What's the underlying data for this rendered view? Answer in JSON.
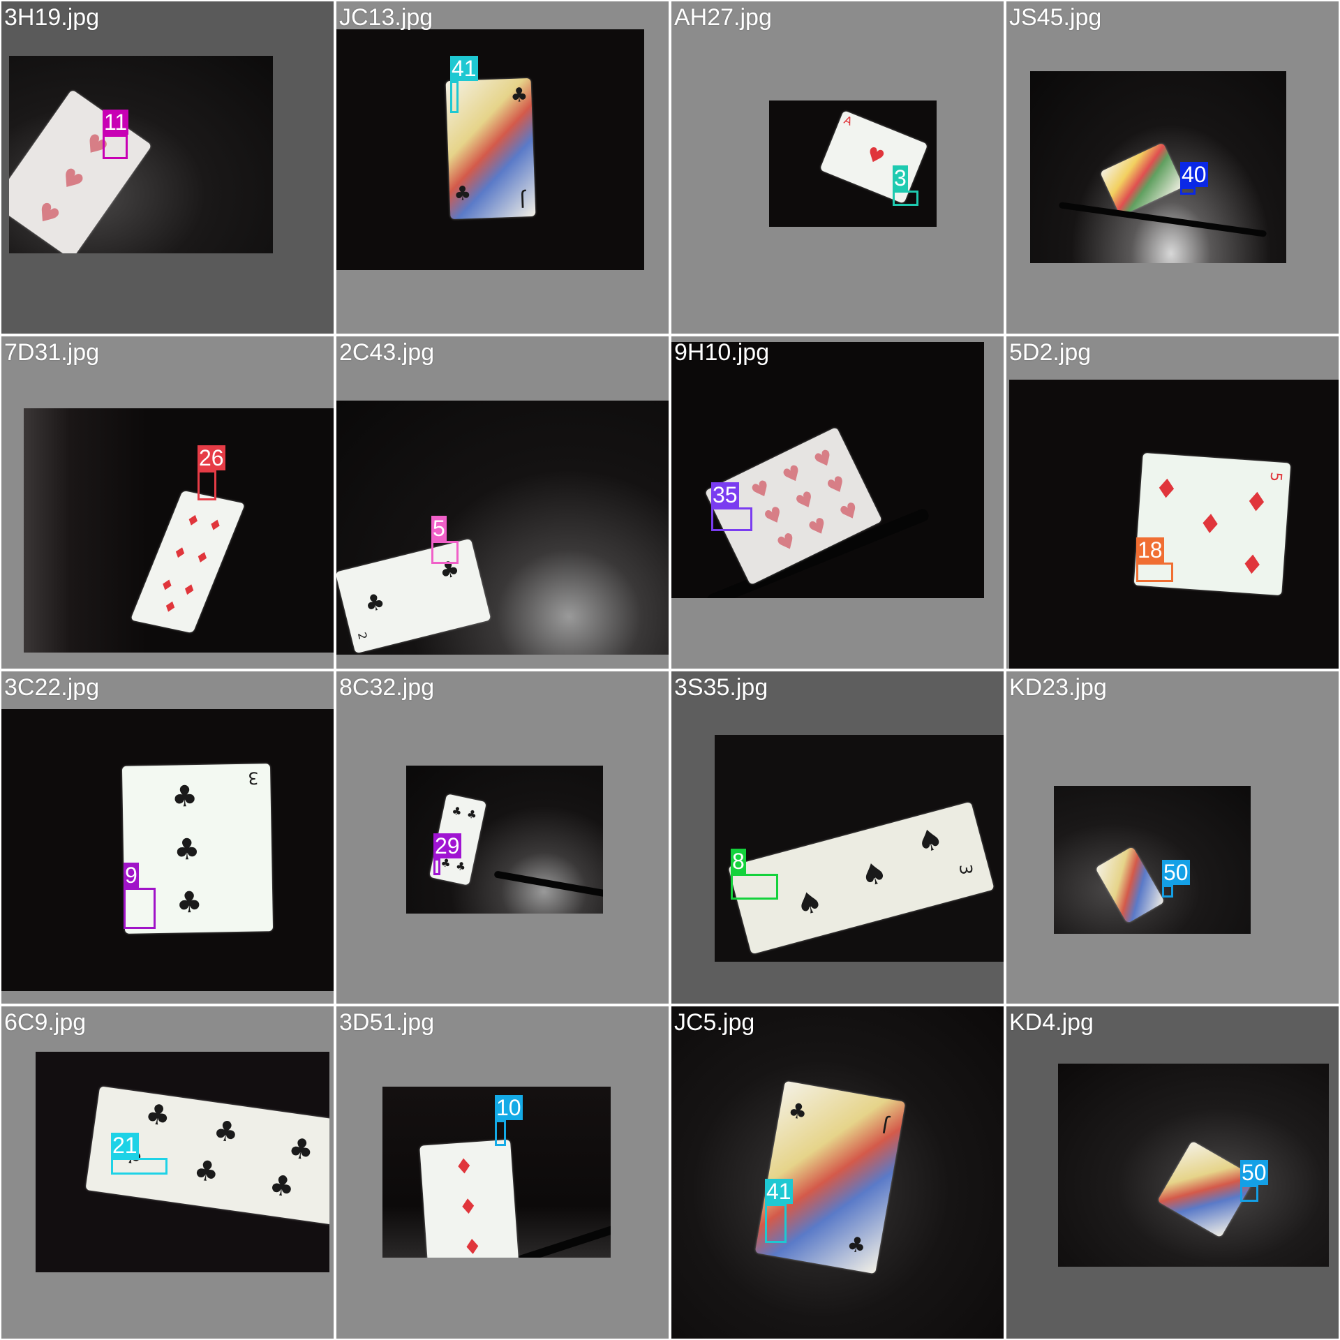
{
  "tiles": [
    {
      "filename": "3H19.jpg",
      "class_id": "11",
      "color": "#c800b4"
    },
    {
      "filename": "JC13.jpg",
      "class_id": "41",
      "color": "#1ec8d2"
    },
    {
      "filename": "AH27.jpg",
      "class_id": "3",
      "color": "#1ecab0"
    },
    {
      "filename": "JS45.jpg",
      "class_id": "40",
      "color": "#0a28e6"
    },
    {
      "filename": "7D31.jpg",
      "class_id": "26",
      "color": "#e63c46"
    },
    {
      "filename": "2C43.jpg",
      "class_id": "5",
      "color": "#f060c8"
    },
    {
      "filename": "9H10.jpg",
      "class_id": "35",
      "color": "#7a3cf0"
    },
    {
      "filename": "5D2.jpg",
      "class_id": "18",
      "color": "#f06e32"
    },
    {
      "filename": "3C22.jpg",
      "class_id": "9",
      "color": "#a014c8"
    },
    {
      "filename": "8C32.jpg",
      "class_id": "29",
      "color": "#a014d2"
    },
    {
      "filename": "3S35.jpg",
      "class_id": "8",
      "color": "#14d23c"
    },
    {
      "filename": "KD23.jpg",
      "class_id": "50",
      "color": "#14a0e6"
    },
    {
      "filename": "6C9.jpg",
      "class_id": "21",
      "color": "#1ed2e6"
    },
    {
      "filename": "3D51.jpg",
      "class_id": "10",
      "color": "#14aae6"
    },
    {
      "filename": "JC5.jpg",
      "class_id": "41",
      "color": "#1ec8d2"
    },
    {
      "filename": "KD4.jpg",
      "class_id": "50",
      "color": "#14a0e6"
    }
  ],
  "card_marks": {
    "heart": "♥",
    "club": "♣",
    "diamond": "♦",
    "spade": "♠",
    "rank_3": "3",
    "rank_J": "J",
    "rank_A": "A",
    "rank_7": "7",
    "rank_2": "2",
    "rank_9": "9",
    "rank_5": "5",
    "rank_6": "6"
  }
}
